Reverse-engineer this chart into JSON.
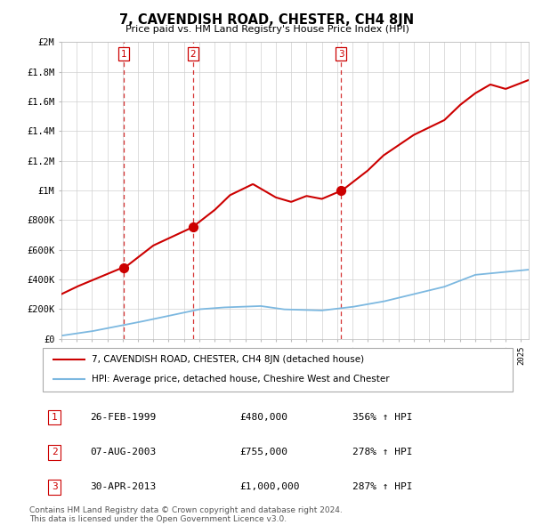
{
  "title": "7, CAVENDISH ROAD, CHESTER, CH4 8JN",
  "subtitle": "Price paid vs. HM Land Registry's House Price Index (HPI)",
  "sale_prices": [
    480000,
    755000,
    1000000
  ],
  "sale_label_dates_str": [
    "26-FEB-1999",
    "07-AUG-2003",
    "30-APR-2013"
  ],
  "sale_pct": [
    "356%",
    "278%",
    "287%"
  ],
  "hpi_color": "#7cb8e0",
  "price_color": "#cc0000",
  "vline_color": "#cc0000",
  "ylim": [
    0,
    2000000
  ],
  "yticks": [
    0,
    200000,
    400000,
    600000,
    800000,
    1000000,
    1200000,
    1400000,
    1600000,
    1800000,
    2000000
  ],
  "ytick_labels": [
    "£0",
    "£200K",
    "£400K",
    "£600K",
    "£800K",
    "£1M",
    "£1.2M",
    "£1.4M",
    "£1.6M",
    "£1.8M",
    "£2M"
  ],
  "legend_line1": "7, CAVENDISH ROAD, CHESTER, CH4 8JN (detached house)",
  "legend_line2": "HPI: Average price, detached house, Cheshire West and Chester",
  "footer1": "Contains HM Land Registry data © Crown copyright and database right 2024.",
  "footer2": "This data is licensed under the Open Government Licence v3.0.",
  "bg_color": "#ffffff",
  "plot_bg_color": "#ffffff",
  "grid_color": "#d0d0d0"
}
